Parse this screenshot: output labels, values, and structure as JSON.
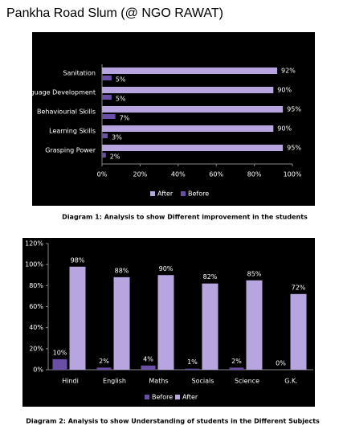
{
  "title": "Pankha Road Slum (@ NGO RAWAT)",
  "chart_data": [
    {
      "type": "hbar",
      "caption": "Diagram 1: Analysis to show Different improvement in the students",
      "categories": [
        "Sanitation",
        "Language Development",
        "Behaviourial Skills",
        "Learning Skills",
        "Grasping Power"
      ],
      "series": [
        {
          "name": "After",
          "color": "#b7a5e0",
          "values": [
            92,
            90,
            95,
            90,
            95
          ],
          "value_labels": [
            "92%",
            "90%",
            "95%",
            "90%",
            "95%"
          ]
        },
        {
          "name": "Before",
          "color": "#6b4fa6",
          "values": [
            5,
            5,
            7,
            3,
            2
          ],
          "value_labels": [
            "5%",
            "5%",
            "7%",
            "3%",
            "2%"
          ]
        }
      ],
      "xlim": [
        0,
        100
      ],
      "xticks": [
        {
          "value": 0,
          "label": "0%"
        },
        {
          "value": 20,
          "label": "20%"
        },
        {
          "value": 40,
          "label": "40%"
        },
        {
          "value": 60,
          "label": "60%"
        },
        {
          "value": 80,
          "label": "80%"
        },
        {
          "value": 100,
          "label": "100%"
        }
      ],
      "legend": "bottom"
    },
    {
      "type": "bar",
      "caption": "Diagram 2: Analysis to show Understanding of students in the Different Subjects",
      "categories": [
        "Hindi",
        "English",
        "Maths",
        "Socials",
        "Science",
        "G.K."
      ],
      "series": [
        {
          "name": "Before",
          "color": "#6b4fa6",
          "values": [
            10,
            2,
            4,
            1,
            2,
            0
          ],
          "value_labels": [
            "10%",
            "2%",
            "4%",
            "1%",
            "2%",
            "0%"
          ]
        },
        {
          "name": "After",
          "color": "#b7a5e0",
          "values": [
            98,
            88,
            90,
            82,
            85,
            72
          ],
          "value_labels": [
            "98%",
            "88%",
            "90%",
            "82%",
            "85%",
            "72%"
          ]
        }
      ],
      "ylim": [
        0,
        120
      ],
      "yticks": [
        {
          "value": 0,
          "label": "0%"
        },
        {
          "value": 20,
          "label": "20%"
        },
        {
          "value": 40,
          "label": "40%"
        },
        {
          "value": 60,
          "label": "60%"
        },
        {
          "value": 80,
          "label": "80%"
        },
        {
          "value": 100,
          "label": "100%"
        },
        {
          "value": 120,
          "label": "120%"
        }
      ],
      "legend": "bottom"
    }
  ]
}
